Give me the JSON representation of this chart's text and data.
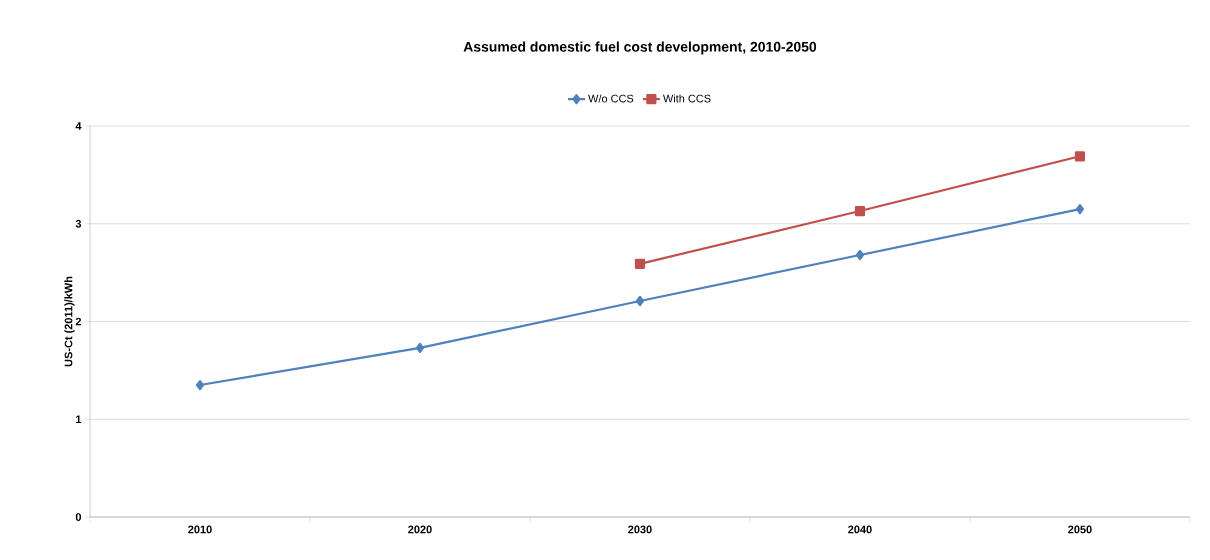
{
  "chart_data": {
    "type": "line",
    "title": "Assumed domestic fuel cost development, 2010-2050",
    "ylabel": "US-Ct (2011)/kWh",
    "categories": [
      "2010",
      "2020",
      "2030",
      "2040",
      "2050"
    ],
    "series": [
      {
        "name": "W/o CCS",
        "color": "#4f81bd",
        "marker": "diamond",
        "values": [
          1.35,
          1.73,
          2.21,
          2.68,
          3.15
        ]
      },
      {
        "name": "With CCS",
        "color": "#c0504d",
        "marker": "square",
        "values": [
          null,
          null,
          2.59,
          3.13,
          3.69
        ]
      }
    ],
    "ylim": [
      0,
      4
    ],
    "yticks": [
      0,
      1,
      2,
      3,
      4
    ],
    "grid": "y",
    "legend": "top"
  }
}
